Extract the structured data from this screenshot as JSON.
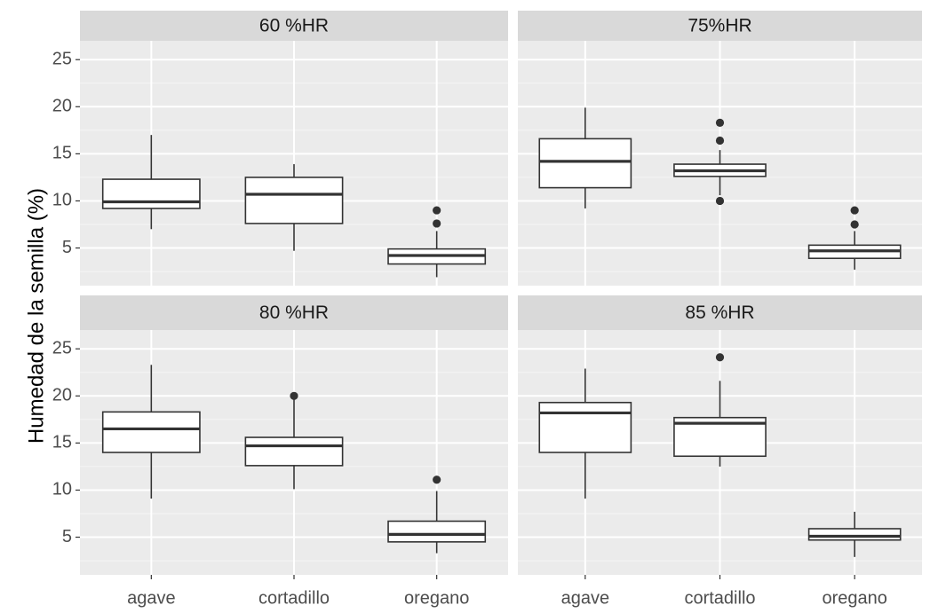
{
  "chart_data": {
    "type": "box",
    "facets": [
      "60 %HR",
      "75%HR",
      "80 %HR",
      "85 %HR"
    ],
    "categories": [
      "agave",
      "cortadillo",
      "oregano"
    ],
    "ylabel": "Humedad de la semilla (%)",
    "xlabel": "",
    "ylim": [
      1,
      27
    ],
    "yticks": [
      5,
      10,
      15,
      20,
      25
    ],
    "grid": true,
    "panels": [
      {
        "facet": "60 %HR",
        "boxes": [
          {
            "category": "agave",
            "lower_whisker": 7.0,
            "q1": 9.2,
            "median": 9.9,
            "q3": 12.3,
            "upper_whisker": 17.0,
            "outliers": []
          },
          {
            "category": "cortadillo",
            "lower_whisker": 4.7,
            "q1": 7.6,
            "median": 10.7,
            "q3": 12.5,
            "upper_whisker": 13.9,
            "outliers": []
          },
          {
            "category": "oregano",
            "lower_whisker": 1.9,
            "q1": 3.3,
            "median": 4.2,
            "q3": 4.9,
            "upper_whisker": 6.8,
            "outliers": [
              7.6,
              9.0
            ]
          }
        ]
      },
      {
        "facet": "75%HR",
        "boxes": [
          {
            "category": "agave",
            "lower_whisker": 9.2,
            "q1": 11.4,
            "median": 14.2,
            "q3": 16.6,
            "upper_whisker": 19.9,
            "outliers": []
          },
          {
            "category": "cortadillo",
            "lower_whisker": 10.6,
            "q1": 12.6,
            "median": 13.2,
            "q3": 13.9,
            "upper_whisker": 15.4,
            "outliers": [
              10.0,
              16.4,
              18.3
            ]
          },
          {
            "category": "oregano",
            "lower_whisker": 2.7,
            "q1": 3.9,
            "median": 4.7,
            "q3": 5.3,
            "upper_whisker": 6.8,
            "outliers": [
              7.5,
              9.0
            ]
          }
        ]
      },
      {
        "facet": "80 %HR",
        "boxes": [
          {
            "category": "agave",
            "lower_whisker": 9.1,
            "q1": 14.0,
            "median": 16.5,
            "q3": 18.3,
            "upper_whisker": 23.3,
            "outliers": []
          },
          {
            "category": "cortadillo",
            "lower_whisker": 10.1,
            "q1": 12.6,
            "median": 14.7,
            "q3": 15.6,
            "upper_whisker": 19.7,
            "outliers": [
              20.0
            ]
          },
          {
            "category": "oregano",
            "lower_whisker": 3.3,
            "q1": 4.5,
            "median": 5.3,
            "q3": 6.7,
            "upper_whisker": 9.9,
            "outliers": [
              11.1
            ]
          }
        ]
      },
      {
        "facet": "85 %HR",
        "boxes": [
          {
            "category": "agave",
            "lower_whisker": 9.1,
            "q1": 14.0,
            "median": 18.2,
            "q3": 19.3,
            "upper_whisker": 22.9,
            "outliers": []
          },
          {
            "category": "cortadillo",
            "lower_whisker": 12.5,
            "q1": 13.6,
            "median": 17.1,
            "q3": 17.7,
            "upper_whisker": 21.6,
            "outliers": [
              24.1
            ]
          },
          {
            "category": "oregano",
            "lower_whisker": 2.9,
            "q1": 4.7,
            "median": 5.1,
            "q3": 5.9,
            "upper_whisker": 7.7,
            "outliers": []
          }
        ]
      }
    ]
  }
}
